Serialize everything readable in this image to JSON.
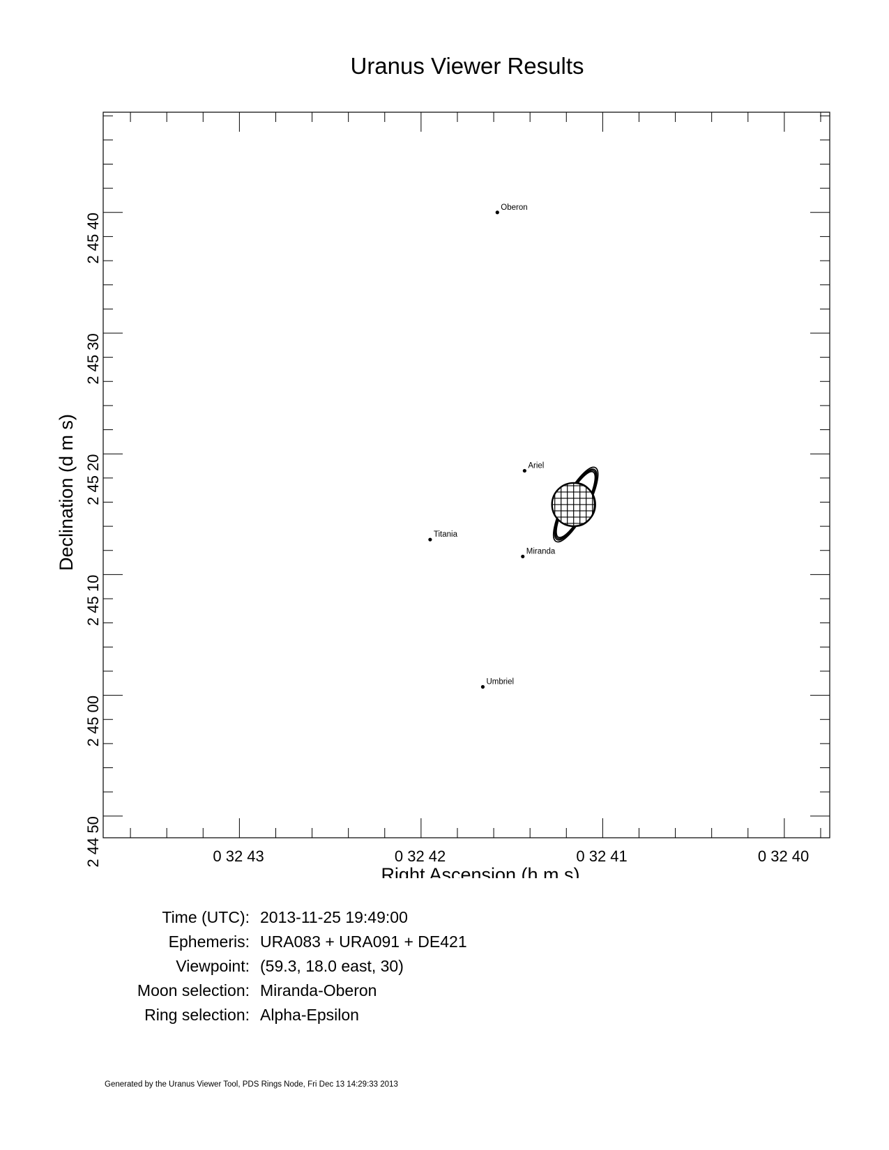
{
  "page_title": "Uranus Viewer Results",
  "chart_data": {
    "type": "scatter",
    "xlabel": "Right Ascension (h m s)",
    "ylabel": "Declination (d m s)",
    "xlim_seconds": [
      43.75,
      39.75
    ],
    "ylim_seconds": [
      -11.8,
      48.3
    ],
    "x_ticks": [
      {
        "label": "0 32 43",
        "value": 43
      },
      {
        "label": "0 32 42",
        "value": 42
      },
      {
        "label": "0 32 41",
        "value": 41
      },
      {
        "label": "0 32 40",
        "value": 40
      }
    ],
    "y_ticks": [
      {
        "label": "2 44 50",
        "value": -10
      },
      {
        "label": "2 45 00",
        "value": 0
      },
      {
        "label": "2 45 10",
        "value": 10
      },
      {
        "label": "2 45 20",
        "value": 20
      },
      {
        "label": "2 45 30",
        "value": 30
      },
      {
        "label": "2 45 40",
        "value": 40
      }
    ],
    "moons": [
      {
        "name": "Oberon",
        "ra_s": 41.58,
        "dec_s": 40.0
      },
      {
        "name": "Ariel",
        "ra_s": 41.43,
        "dec_s": 18.6
      },
      {
        "name": "Titania",
        "ra_s": 41.95,
        "dec_s": 12.9
      },
      {
        "name": "Miranda",
        "ra_s": 41.44,
        "dec_s": 11.5
      },
      {
        "name": "Umbriel",
        "ra_s": 41.66,
        "dec_s": 0.7
      }
    ],
    "planet": {
      "name": "Uranus",
      "ra_s": 41.16,
      "dec_s": 15.8
    }
  },
  "info": [
    {
      "label": "Time (UTC):",
      "value": "2013-11-25 19:49:00"
    },
    {
      "label": "Ephemeris:",
      "value": "URA083 + URA091 + DE421"
    },
    {
      "label": "Viewpoint:",
      "value": "(59.3, 18.0 east, 30)"
    },
    {
      "label": "Moon selection:",
      "value": "Miranda-Oberon"
    },
    {
      "label": "Ring selection:",
      "value": "Alpha-Epsilon"
    }
  ],
  "footer": "Generated by the Uranus Viewer Tool, PDS Rings Node, Fri Dec 13 14:29:33 2013"
}
